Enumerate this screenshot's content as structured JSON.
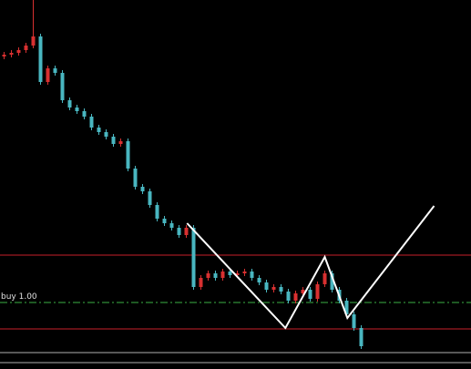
{
  "chart_data": {
    "type": "candlestick",
    "ylim": [
      0,
      405
    ],
    "up_color": "#d83030",
    "down_color": "#49b6c0",
    "open": [
      343,
      345,
      347,
      350,
      355,
      365,
      315,
      330,
      325,
      295,
      287,
      283,
      277,
      265,
      260,
      255,
      247,
      250,
      220,
      200,
      195,
      180,
      165,
      160,
      155,
      147,
      155,
      90,
      100,
      105,
      100,
      107,
      103,
      105,
      107,
      100,
      95,
      87,
      90,
      85,
      75,
      83,
      87,
      77,
      93,
      105,
      87,
      75,
      60,
      45
    ],
    "high": [
      348,
      350,
      353,
      358,
      405,
      368,
      333,
      333,
      328,
      298,
      290,
      286,
      280,
      268,
      263,
      258,
      253,
      253,
      223,
      203,
      198,
      183,
      168,
      163,
      158,
      158,
      158,
      103,
      108,
      108,
      110,
      110,
      108,
      110,
      110,
      103,
      98,
      93,
      93,
      88,
      86,
      90,
      90,
      96,
      108,
      108,
      90,
      78,
      63,
      48
    ],
    "low": [
      340,
      342,
      344,
      347,
      352,
      312,
      312,
      322,
      292,
      284,
      280,
      274,
      262,
      257,
      252,
      244,
      244,
      217,
      197,
      192,
      177,
      162,
      157,
      152,
      144,
      144,
      87,
      87,
      97,
      97,
      97,
      100,
      100,
      102,
      97,
      92,
      84,
      84,
      82,
      72,
      72,
      80,
      74,
      74,
      90,
      84,
      72,
      57,
      42,
      22
    ],
    "close": [
      345,
      347,
      350,
      355,
      365,
      315,
      330,
      325,
      295,
      287,
      283,
      277,
      265,
      260,
      255,
      247,
      250,
      220,
      200,
      195,
      180,
      165,
      160,
      155,
      147,
      155,
      90,
      100,
      105,
      100,
      107,
      103,
      105,
      107,
      100,
      95,
      87,
      90,
      85,
      75,
      83,
      87,
      77,
      93,
      105,
      87,
      75,
      60,
      45,
      25
    ],
    "levels": [
      {
        "value": 125,
        "color": "#c8202a"
      },
      {
        "value": 44,
        "color": "#c8202a"
      },
      {
        "value": 73,
        "color": "#3cb043",
        "label": "buy 1.00"
      },
      {
        "value": 18,
        "color": "#b0b0b0"
      },
      {
        "value": 7,
        "color": "#b0b0b0"
      }
    ],
    "zigzag": {
      "x": [
        25.1,
        38.6,
        44,
        47.1,
        59
      ],
      "values": [
        160,
        45,
        123,
        56,
        179
      ],
      "color": "#ffffff"
    }
  }
}
